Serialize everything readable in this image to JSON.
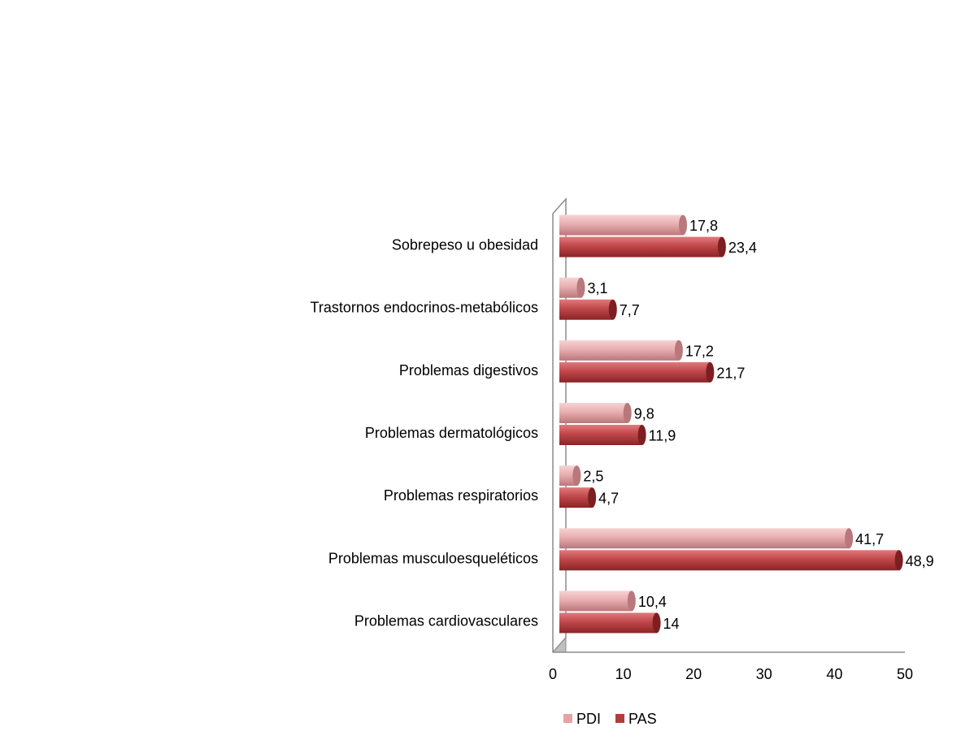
{
  "chart_data": {
    "type": "bar",
    "orientation": "horizontal",
    "style": "3d-cylinder",
    "categories": [
      "Sobrepeso u obesidad",
      "Trastornos endocrinos-metabólicos",
      "Problemas digestivos",
      "Problemas dermatológicos",
      "Problemas respiratorios",
      "Problemas musculoesqueléticos",
      "Problemas cardiovasculares"
    ],
    "series": [
      {
        "name": "PDI",
        "color": "#E5A3A6",
        "values": [
          17.8,
          3.1,
          17.2,
          9.8,
          2.5,
          41.7,
          10.4
        ],
        "labels": [
          "17,8",
          "3,1",
          "17,2",
          "9,8",
          "2,5",
          "41,7",
          "10,4"
        ]
      },
      {
        "name": "PAS",
        "color": "#B8393C",
        "values": [
          23.4,
          7.7,
          21.7,
          11.9,
          4.7,
          48.9,
          14
        ],
        "labels": [
          "23,4",
          "7,7",
          "21,7",
          "11,9",
          "4,7",
          "48,9",
          "14"
        ]
      }
    ],
    "xlim": [
      0,
      50
    ],
    "xticks": [
      "0",
      "10",
      "20",
      "30",
      "40",
      "50"
    ],
    "legend_position": "bottom",
    "grid": false
  }
}
